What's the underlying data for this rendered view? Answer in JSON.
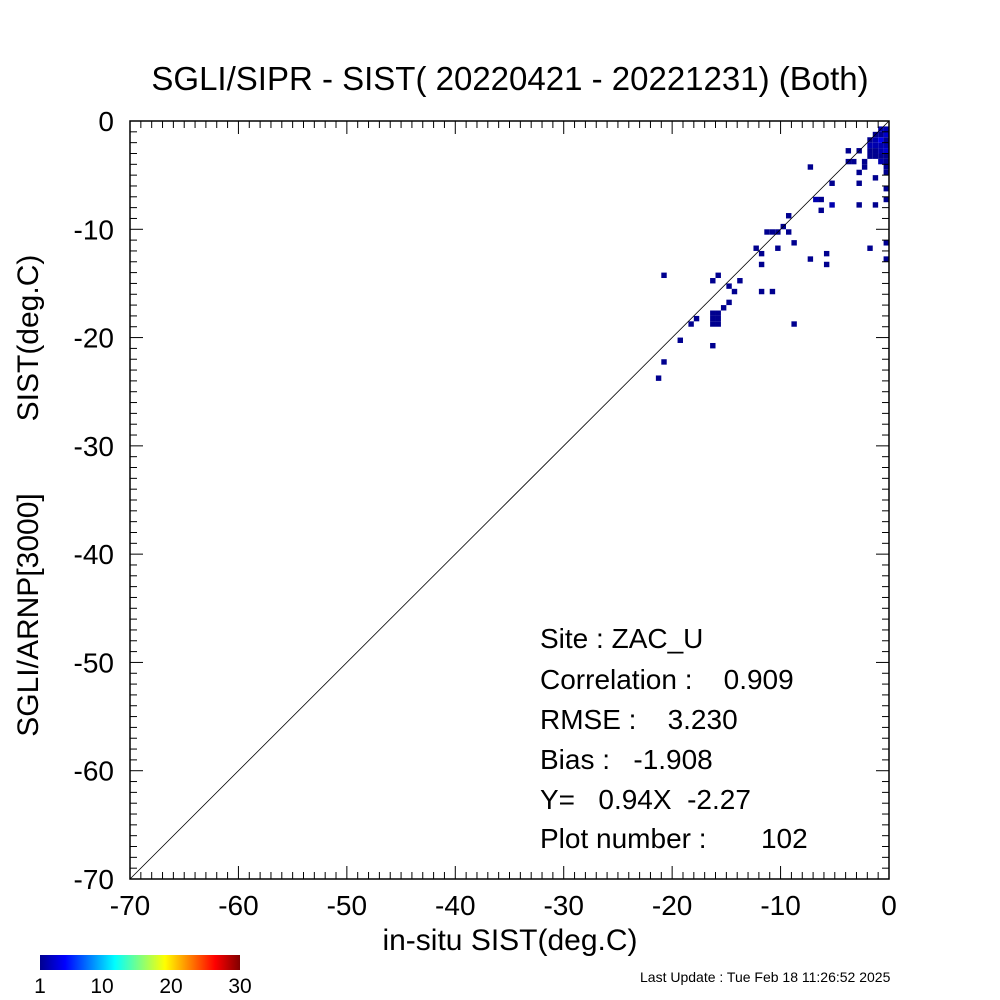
{
  "chart_data": {
    "type": "heatmap",
    "title": "SGLI/SIPR - SIST( 20220421 - 20221231) (Both)",
    "xlabel": "in-situ SIST(deg.C)",
    "ylabel_parts": [
      "SGLI/ARNP[3000]",
      "SIST(deg.C)"
    ],
    "xlim": [
      -70,
      0
    ],
    "ylim": [
      -70,
      0
    ],
    "x_ticks": [
      -70,
      -60,
      -50,
      -40,
      -30,
      -20,
      -10,
      0
    ],
    "x_tick_labels": [
      "-70",
      "-60",
      "-50",
      "-40",
      "-30",
      "-20",
      "-10",
      "0"
    ],
    "y_ticks": [
      0,
      -10,
      -20,
      -30,
      -40,
      -50,
      -60,
      -70
    ],
    "y_tick_labels": [
      "0",
      "-10",
      "-20",
      "-30",
      "-40",
      "-50",
      "-60",
      "-70"
    ],
    "reference_line": "y = x",
    "bin_size": 0.5,
    "points": [
      [
        -21.3,
        -23.8
      ],
      [
        -20.8,
        -22.4
      ],
      [
        -21.0,
        -14.2
      ],
      [
        -19.5,
        -20.5
      ],
      [
        -18.5,
        -19.0
      ],
      [
        -17.8,
        -18.2
      ],
      [
        -16.2,
        -21.0
      ],
      [
        -16.2,
        -14.9
      ],
      [
        -15.8,
        -14.2
      ],
      [
        -15.6,
        -17.6
      ],
      [
        -15.2,
        -17.2
      ],
      [
        -14.6,
        -17.0
      ],
      [
        -14.7,
        -15.2
      ],
      [
        -14.4,
        -15.8
      ],
      [
        -13.8,
        -14.9
      ],
      [
        -16.2,
        -17.8
      ],
      [
        -16.2,
        -18.4
      ],
      [
        -15.7,
        -18.4
      ],
      [
        -15.8,
        -19.0
      ],
      [
        -16.2,
        -19.0
      ],
      [
        -12.5,
        -11.8
      ],
      [
        -11.8,
        -12.5
      ],
      [
        -11.6,
        -13.5
      ],
      [
        -11.8,
        -15.7
      ],
      [
        -10.8,
        -15.7
      ],
      [
        -11.4,
        -10.2
      ],
      [
        -10.8,
        -10.2
      ],
      [
        -10.2,
        -10.2
      ],
      [
        -10.3,
        -12.0
      ],
      [
        -9.8,
        -9.6
      ],
      [
        -9.5,
        -9.0
      ],
      [
        -9.2,
        -10.2
      ],
      [
        -8.6,
        -11.5
      ],
      [
        -8.8,
        -19.0
      ],
      [
        -7.4,
        -12.6
      ],
      [
        -7.0,
        -7.1
      ],
      [
        -6.6,
        -7.4
      ],
      [
        -6.5,
        -8.2
      ],
      [
        -6.2,
        -7.4
      ],
      [
        -6.0,
        -12.2
      ],
      [
        -5.8,
        -13.5
      ],
      [
        -5.5,
        -7.8
      ],
      [
        -5.2,
        -8.0
      ],
      [
        -5.4,
        -5.8
      ],
      [
        -7.4,
        -4.3
      ],
      [
        -4.0,
        -3.0
      ],
      [
        -3.7,
        -4.0
      ],
      [
        -3.5,
        -3.8
      ],
      [
        -3.0,
        -3.0
      ],
      [
        -2.8,
        -4.7
      ],
      [
        -2.9,
        -5.6
      ],
      [
        -2.5,
        -4.2
      ],
      [
        -2.2,
        -3.8
      ],
      [
        -2.8,
        -8.0
      ],
      [
        -1.5,
        -8.0
      ],
      [
        -1.5,
        -5.5
      ],
      [
        -1.6,
        -12.0
      ],
      [
        -1.7,
        -2.0
      ],
      [
        -1.4,
        -2.4
      ],
      [
        -1.2,
        -2.0
      ],
      [
        -1.0,
        -2.5
      ],
      [
        -0.8,
        -3.0
      ],
      [
        -0.6,
        -2.0
      ],
      [
        -0.4,
        -1.5
      ],
      [
        -0.3,
        -2.4
      ],
      [
        -0.2,
        -3.4
      ],
      [
        -0.3,
        -4.5
      ],
      [
        -0.2,
        -5.0
      ],
      [
        -0.4,
        -6.5
      ],
      [
        -0.2,
        -7.2
      ],
      [
        -0.3,
        -11.5
      ],
      [
        -0.3,
        -12.6
      ],
      [
        -0.9,
        -3.8
      ],
      [
        -1.2,
        -3.0
      ],
      [
        -0.6,
        -1.0
      ],
      [
        -0.7,
        -1.9
      ],
      [
        -0.8,
        -2.2
      ],
      [
        -1.0,
        -1.6
      ],
      [
        -0.5,
        -2.6
      ],
      [
        -1.5,
        -1.7
      ],
      [
        -1.3,
        -1.5
      ],
      [
        -0.6,
        -1.8
      ],
      [
        -0.9,
        -2.8
      ],
      [
        -1.6,
        -2.6
      ],
      [
        -1.1,
        -2.3
      ],
      [
        -0.4,
        -2.2
      ],
      [
        -0.5,
        -1.4
      ],
      [
        -0.8,
        -1.2
      ],
      [
        -1.0,
        -1.0
      ],
      [
        -1.3,
        -3.3
      ],
      [
        -0.2,
        -0.8
      ],
      [
        -0.3,
        -1.2
      ],
      [
        -0.4,
        -0.9
      ],
      [
        -0.2,
        -1.6
      ],
      [
        -0.7,
        -3.3
      ],
      [
        -1.7,
        -2.2
      ],
      [
        -1.9,
        -2.4
      ],
      [
        -2.0,
        -3.2
      ],
      [
        -0.6,
        -3.6
      ],
      [
        -0.1,
        -4.0
      ],
      [
        -0.1,
        -2.8
      ],
      [
        -0.5,
        -3.0
      ]
    ],
    "colorbar": {
      "min": 1,
      "max": 30,
      "ticks": [
        1,
        10,
        20,
        30
      ],
      "tick_labels": [
        "1",
        "10",
        "20",
        "30"
      ],
      "colormap": "jet"
    },
    "stats": {
      "site": "Site : ZAC_U",
      "correlation": "Correlation :    0.909",
      "rmse": "RMSE :    3.230",
      "bias": "Bias :   -1.908",
      "regression": "Y=   0.94X  -2.27",
      "plot_number": "Plot number :       102"
    }
  },
  "footer": "Last Update : Tue Feb 18 11:26:52 2025",
  "colors": {
    "low_count": "#00008f",
    "high_count": "#800000",
    "axis": "#000000",
    "reference_line": "#000000"
  }
}
